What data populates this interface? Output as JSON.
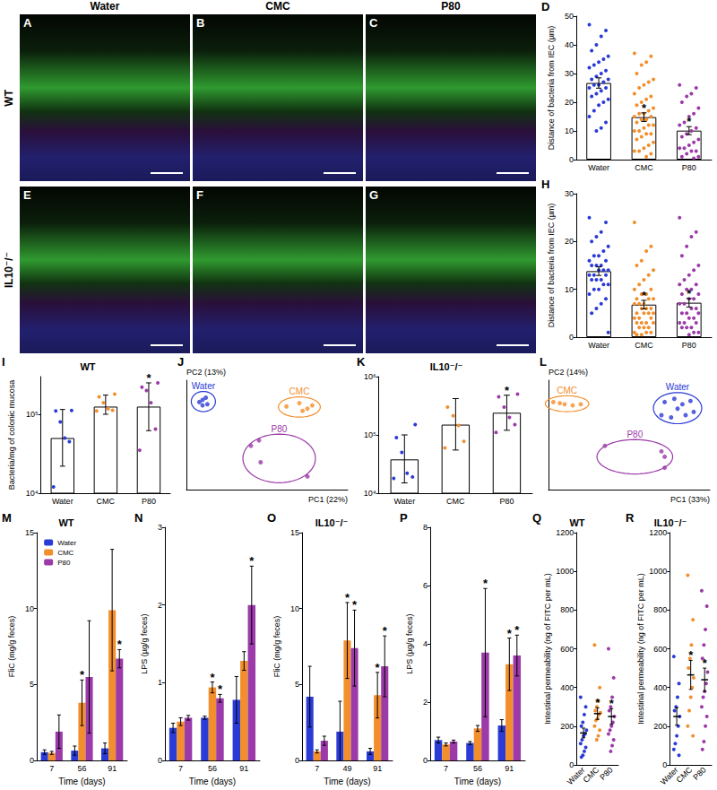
{
  "figure": {
    "column_headers": [
      "Water",
      "CMC",
      "P80"
    ],
    "row_labels": [
      "WT",
      "IL10⁻/⁻"
    ]
  },
  "images": [
    {
      "panel": "A",
      "row": "WT",
      "column": "Water"
    },
    {
      "panel": "B",
      "row": "WT",
      "column": "CMC"
    },
    {
      "panel": "C",
      "row": "WT",
      "column": "P80"
    },
    {
      "panel": "E",
      "row": "IL10⁻/⁻",
      "column": "Water"
    },
    {
      "panel": "F",
      "row": "IL10⁻/⁻",
      "column": "CMC"
    },
    {
      "panel": "G",
      "row": "IL10⁻/⁻",
      "column": "P80"
    }
  ],
  "chart_data": [
    {
      "panel": "D",
      "type": "bar",
      "ylabel": "Distance of bacteria from IEC (µm)",
      "categories": [
        "Water",
        "CMC",
        "P80"
      ],
      "values": [
        26.7,
        14.8,
        10.1
      ],
      "errors": [
        1.8,
        1.5,
        1.4
      ],
      "colors": [
        "#2a3bd6",
        "#f28e2b",
        "#9b3aa8"
      ],
      "points": [
        [
          47,
          45,
          43,
          40,
          38,
          36,
          35,
          34,
          33,
          32,
          31,
          30,
          29,
          28,
          28,
          27,
          26,
          26,
          25,
          25,
          24,
          23,
          22,
          21,
          20,
          19,
          17,
          15,
          13,
          11,
          10
        ],
        [
          37,
          36,
          34,
          33,
          30,
          28,
          27,
          26,
          25,
          23,
          22,
          21,
          20,
          19,
          18,
          17,
          16,
          16,
          15,
          15,
          14,
          14,
          13,
          12,
          12,
          11,
          10,
          10,
          9,
          9,
          8,
          7,
          6,
          5,
          4,
          3,
          3,
          2,
          1
        ],
        [
          26,
          25,
          23,
          22,
          20,
          18,
          16,
          15,
          13,
          12,
          11,
          10,
          9,
          8,
          7,
          6,
          5,
          4,
          4,
          3,
          3,
          2,
          1,
          1,
          0.5
        ]
      ],
      "ylim": [
        0,
        50
      ],
      "yticks": [
        0,
        10,
        20,
        30,
        40,
        50
      ],
      "annotations": [
        {
          "category": "CMC",
          "text": "*"
        },
        {
          "category": "P80",
          "text": "*"
        }
      ]
    },
    {
      "panel": "H",
      "type": "bar",
      "ylabel": "Distance of bacteria from IEC (µm)",
      "categories": [
        "Water",
        "CMC",
        "P80"
      ],
      "values": [
        13.8,
        6.8,
        7.2
      ],
      "errors": [
        0.9,
        0.9,
        0.9
      ],
      "colors": [
        "#2a3bd6",
        "#f28e2b",
        "#9b3aa8"
      ],
      "points": [
        [
          25,
          24,
          22,
          21,
          20,
          19,
          18,
          17,
          17,
          16,
          16,
          15,
          15,
          15,
          14,
          14,
          14,
          13,
          13,
          13,
          12,
          12,
          12,
          11,
          11,
          10,
          10,
          9,
          8,
          7,
          6,
          5,
          1
        ],
        [
          24,
          19,
          18,
          16,
          15,
          14,
          13,
          12,
          11,
          10,
          10,
          9,
          9,
          8,
          8,
          8,
          7,
          7,
          7,
          6,
          6,
          6,
          5,
          5,
          5,
          5,
          4,
          4,
          4,
          3,
          3,
          3,
          3,
          2,
          2,
          2,
          1,
          1,
          1,
          0.5,
          0.5
        ],
        [
          25,
          22,
          21,
          19,
          17,
          15,
          14,
          13,
          12,
          11,
          11,
          10,
          10,
          9,
          9,
          8,
          8,
          7,
          7,
          6,
          6,
          5,
          5,
          5,
          4,
          4,
          3,
          3,
          3,
          2,
          2,
          2,
          1,
          1,
          0.5
        ]
      ],
      "ylim": [
        0,
        30
      ],
      "yticks": [
        0,
        10,
        20,
        30
      ],
      "annotations": [
        {
          "category": "CMC",
          "text": "*"
        },
        {
          "category": "P80",
          "text": "*"
        }
      ]
    },
    {
      "panel": "I",
      "type": "bar",
      "title": "WT",
      "ylabel": "Bacteria/mg of colonic mucosa",
      "log": "y",
      "categories": [
        "Water",
        "CMC",
        "P80"
      ],
      "values": [
        50000,
        125000,
        125000
      ],
      "error_bars": [
        [
          22000,
          115000
        ],
        [
          100000,
          175000
        ],
        [
          62000,
          250000
        ]
      ],
      "colors": [
        "#2a3bd6",
        "#f28e2b",
        "#9b3aa8"
      ],
      "points": [
        [
          12000,
          45000,
          50000,
          80000,
          110000,
          112000
        ],
        [
          110000,
          115000,
          120000,
          140000,
          170000,
          180000
        ],
        [
          35000,
          65000,
          140000,
          200000,
          220000,
          250000
        ]
      ],
      "ylim": [
        10000,
        300000
      ],
      "yticks": [
        {
          "value": 10000,
          "label": "10⁴"
        },
        {
          "value": 100000,
          "label": "10⁵"
        }
      ],
      "annotations": [
        {
          "category": "P80",
          "text": "*"
        }
      ]
    },
    {
      "panel": "J",
      "type": "scatter",
      "xlabel": "PC1 (22%)",
      "ylabel": "PC2 (13%)",
      "tick_labels": false,
      "xlim": [
        0,
        1
      ],
      "ylim": [
        0,
        1
      ],
      "series": [
        {
          "name": "Water",
          "color": "#2a3bd6",
          "points": [
            [
              0.1,
              0.82
            ],
            [
              0.12,
              0.84
            ],
            [
              0.08,
              0.8
            ],
            [
              0.13,
              0.78
            ],
            [
              0.1,
              0.77
            ]
          ]
        },
        {
          "name": "CMC",
          "color": "#f28e2b",
          "points": [
            [
              0.62,
              0.76
            ],
            [
              0.7,
              0.79
            ],
            [
              0.75,
              0.74
            ],
            [
              0.78,
              0.77
            ],
            [
              0.72,
              0.72
            ]
          ]
        },
        {
          "name": "P80",
          "color": "#9b3aa8",
          "points": [
            [
              0.4,
              0.4
            ],
            [
              0.45,
              0.45
            ],
            [
              0.46,
              0.25
            ],
            [
              0.75,
              0.12
            ]
          ]
        }
      ]
    },
    {
      "panel": "K",
      "type": "bar",
      "title": "IL10⁻/⁻",
      "log": "y",
      "categories": [
        "Water",
        "CMC",
        "P80"
      ],
      "values": [
        38000,
        150000,
        240000
      ],
      "error_bars": [
        [
          15000,
          100000
        ],
        [
          55000,
          420000
        ],
        [
          120000,
          480000
        ]
      ],
      "colors": [
        "#2a3bd6",
        "#f28e2b",
        "#9b3aa8"
      ],
      "points": [
        [
          18000,
          19000,
          22000,
          50000,
          90000,
          150000
        ],
        [
          60000,
          80000,
          150000,
          220000,
          300000
        ],
        [
          110000,
          150000,
          200000,
          300000,
          450000,
          500000
        ]
      ],
      "ylim": [
        10000,
        1000000
      ],
      "yticks": [
        {
          "value": 10000,
          "label": "10⁴"
        },
        {
          "value": 100000,
          "label": "10⁵"
        },
        {
          "value": 1000000,
          "label": "10⁶"
        }
      ],
      "annotations": [
        {
          "category": "P80",
          "text": "*"
        }
      ]
    },
    {
      "panel": "L",
      "type": "scatter",
      "xlabel": "PC1 (33%)",
      "ylabel": "PC2 (14%)",
      "tick_labels": false,
      "xlim": [
        0,
        1
      ],
      "ylim": [
        0,
        1
      ],
      "series": [
        {
          "name": "Water",
          "color": "#2a3bd6",
          "points": [
            [
              0.72,
              0.8
            ],
            [
              0.78,
              0.83
            ],
            [
              0.83,
              0.78
            ],
            [
              0.88,
              0.81
            ],
            [
              0.7,
              0.68
            ],
            [
              0.76,
              0.66
            ],
            [
              0.85,
              0.68
            ],
            [
              0.9,
              0.71
            ],
            [
              0.8,
              0.74
            ]
          ]
        },
        {
          "name": "CMC",
          "color": "#f28e2b",
          "points": [
            [
              0.03,
              0.8
            ],
            [
              0.07,
              0.79
            ],
            [
              0.1,
              0.78
            ],
            [
              0.15,
              0.77
            ],
            [
              0.2,
              0.78
            ]
          ]
        },
        {
          "name": "P80",
          "color": "#9b3aa8",
          "points": [
            [
              0.35,
              0.4
            ],
            [
              0.7,
              0.35
            ],
            [
              0.72,
              0.3
            ],
            [
              0.72,
              0.2
            ]
          ]
        }
      ]
    },
    {
      "panel": "M",
      "type": "bar",
      "title": "WT",
      "ylabel": "FliC (mg/g feces)",
      "xlabel": "Time (days)",
      "legend": "upper left",
      "categories": [
        "7",
        "56",
        "91"
      ],
      "series": [
        {
          "name": "Water",
          "color": "#2a3bd6",
          "values": [
            0.55,
            0.65,
            0.8
          ],
          "errors": [
            0.15,
            0.3,
            0.35
          ]
        },
        {
          "name": "CMC",
          "color": "#f28e2b",
          "values": [
            0.5,
            3.8,
            9.9
          ],
          "errors": [
            0.1,
            1.5,
            4.0
          ]
        },
        {
          "name": "P80",
          "color": "#9b3aa8",
          "values": [
            1.9,
            5.5,
            6.7
          ],
          "errors": [
            1.1,
            3.7,
            0.6
          ]
        }
      ],
      "ylim": [
        0,
        15
      ],
      "yticks": [
        0,
        5,
        10,
        15
      ],
      "annotations": [
        {
          "category": "56",
          "series": "CMC",
          "text": "*"
        },
        {
          "category": "91",
          "series": "P80",
          "text": "*"
        }
      ]
    },
    {
      "panel": "N",
      "type": "bar",
      "ylabel": "LPS (µg/g feces)",
      "xlabel": "Time (days)",
      "categories": [
        "7",
        "56",
        "91"
      ],
      "series": [
        {
          "name": "Water",
          "color": "#2a3bd6",
          "values": [
            0.42,
            0.55,
            0.78
          ],
          "errors": [
            0.06,
            0.02,
            0.3
          ]
        },
        {
          "name": "CMC",
          "color": "#f28e2b",
          "values": [
            0.5,
            0.94,
            1.28
          ],
          "errors": [
            0.05,
            0.07,
            0.12
          ]
        },
        {
          "name": "P80",
          "color": "#9b3aa8",
          "values": [
            0.55,
            0.8,
            2.0
          ],
          "errors": [
            0.03,
            0.05,
            0.5
          ]
        }
      ],
      "ylim": [
        0,
        3
      ],
      "yticks": [
        0,
        1,
        2,
        3
      ],
      "annotations": [
        {
          "category": "56",
          "series": "CMC",
          "text": "*"
        },
        {
          "category": "56",
          "series": "P80",
          "text": "*"
        },
        {
          "category": "91",
          "series": "P80",
          "text": "*"
        }
      ]
    },
    {
      "panel": "O",
      "type": "bar",
      "title": "IL10⁻/⁻",
      "ylabel": "FliC (mg/g feces)",
      "xlabel": "Time (days)",
      "categories": [
        "7",
        "49",
        "91"
      ],
      "series": [
        {
          "name": "Water",
          "color": "#2a3bd6",
          "values": [
            4.2,
            1.9,
            0.6
          ],
          "errors": [
            2.0,
            2.0,
            0.2
          ]
        },
        {
          "name": "CMC",
          "color": "#f28e2b",
          "values": [
            0.6,
            7.9,
            4.3
          ],
          "errors": [
            0.1,
            2.5,
            1.5
          ]
        },
        {
          "name": "P80",
          "color": "#9b3aa8",
          "values": [
            1.3,
            7.4,
            6.2
          ],
          "errors": [
            0.3,
            2.5,
            2.0
          ]
        }
      ],
      "ylim": [
        0,
        15
      ],
      "yticks": [
        0,
        5,
        10,
        15
      ],
      "annotations": [
        {
          "category": "49",
          "series": "CMC",
          "text": "*"
        },
        {
          "category": "49",
          "series": "P80",
          "text": "*"
        },
        {
          "category": "91",
          "series": "CMC",
          "text": "*"
        },
        {
          "category": "91",
          "series": "P80",
          "text": "*"
        }
      ]
    },
    {
      "panel": "P",
      "type": "bar",
      "ylabel": "LPS (µg/g feces)",
      "xlabel": "Time (days)",
      "categories": [
        "7",
        "56",
        "91"
      ],
      "series": [
        {
          "name": "Water",
          "color": "#2a3bd6",
          "values": [
            0.7,
            0.6,
            1.2
          ],
          "errors": [
            0.1,
            0.05,
            0.2
          ]
        },
        {
          "name": "CMC",
          "color": "#f28e2b",
          "values": [
            0.55,
            1.1,
            3.3
          ],
          "errors": [
            0.05,
            0.1,
            0.9
          ]
        },
        {
          "name": "P80",
          "color": "#9b3aa8",
          "values": [
            0.65,
            3.7,
            3.6
          ],
          "errors": [
            0.05,
            2.2,
            0.7
          ]
        }
      ],
      "ylim": [
        0,
        8
      ],
      "yticks": [
        0,
        2,
        4,
        6,
        8
      ],
      "annotations": [
        {
          "category": "56",
          "series": "P80",
          "text": "*"
        },
        {
          "category": "91",
          "series": "CMC",
          "text": "*"
        },
        {
          "category": "91",
          "series": "P80",
          "text": "*"
        }
      ]
    },
    {
      "panel": "Q",
      "type": "scatter",
      "title": "WT",
      "ylabel": "Intestinal permeability (ng of FITC per mL)",
      "categories": [
        "Water",
        "CMC",
        "P80"
      ],
      "values": [
        165,
        265,
        250
      ],
      "errors": [
        25,
        30,
        40
      ],
      "colors": [
        "#2a3bd6",
        "#f28e2b",
        "#9b3aa8"
      ],
      "points": [
        [
          350,
          300,
          260,
          220,
          200,
          180,
          160,
          150,
          130,
          110,
          90,
          70,
          50,
          40
        ],
        [
          620,
          400,
          330,
          300,
          280,
          270,
          260,
          240,
          230,
          200,
          180,
          150,
          130
        ],
        [
          600,
          450,
          350,
          300,
          280,
          250,
          220,
          200,
          180,
          160,
          130,
          100,
          70
        ]
      ],
      "ylim": [
        0,
        1200
      ],
      "yticks": [
        0,
        200,
        400,
        600,
        800,
        1000,
        1200
      ],
      "annotations": [
        {
          "category": "CMC",
          "text": "*"
        },
        {
          "category": "P80",
          "text": "*"
        }
      ]
    },
    {
      "panel": "R",
      "type": "scatter",
      "title": "IL10⁻/⁻",
      "ylabel": "Intestinal permeability (ng of FITC per mL)",
      "categories": [
        "Water",
        "CMC",
        "P80"
      ],
      "values": [
        250,
        465,
        440
      ],
      "errors": [
        45,
        75,
        60
      ],
      "colors": [
        "#2a3bd6",
        "#f28e2b",
        "#9b3aa8"
      ],
      "points": [
        [
          560,
          420,
          350,
          300,
          280,
          250,
          200,
          150,
          110,
          80,
          50
        ],
        [
          980,
          750,
          620,
          550,
          500,
          450,
          400,
          350,
          280,
          200,
          150
        ],
        [
          900,
          820,
          700,
          620,
          550,
          480,
          420,
          380,
          350,
          300,
          250,
          200,
          120,
          80
        ]
      ],
      "ylim": [
        0,
        1200
      ],
      "yticks": [
        0,
        200,
        400,
        600,
        800,
        1000,
        1200
      ],
      "annotations": [
        {
          "category": "CMC",
          "text": "*"
        },
        {
          "category": "P80",
          "text": "*"
        }
      ]
    }
  ]
}
